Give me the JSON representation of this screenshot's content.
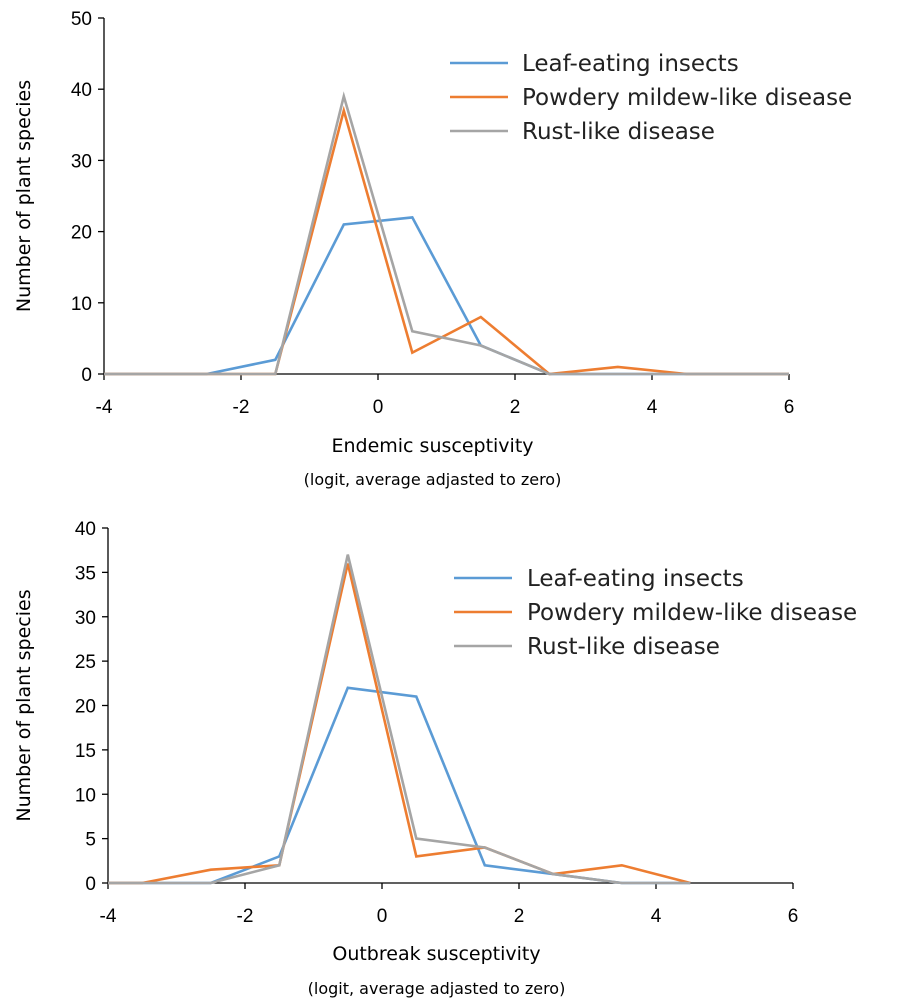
{
  "colors": {
    "leaf": "#5b9bd5",
    "powdery": "#ed7d31",
    "rust": "#a5a5a5"
  },
  "chart_data": [
    {
      "type": "line",
      "xlabel": "Endemic susceptivity",
      "xlabel_sub": "(logit, average adjasted to zero)",
      "ylabel": "Number of plant species",
      "xlim": [
        -4,
        6
      ],
      "ylim": [
        0,
        50
      ],
      "xticks": [
        -4,
        -2,
        0,
        2,
        4,
        6
      ],
      "yticks": [
        0,
        10,
        20,
        30,
        40,
        50
      ],
      "grid": false,
      "legend_position": "top-right",
      "x": [
        -4,
        -3.5,
        -2.5,
        -1.5,
        -0.5,
        0.5,
        1.5,
        2.5,
        3.5,
        4.5,
        6
      ],
      "series": [
        {
          "name": "Leaf-eating insects",
          "color_key": "leaf",
          "x": [
            -4,
            -3.5,
            -2.5,
            -1.5,
            -0.5,
            0.5,
            1.5,
            2.5,
            3.5,
            4.5,
            6
          ],
          "values": [
            0,
            0,
            0,
            2,
            21,
            22,
            4,
            0,
            0,
            0,
            0
          ]
        },
        {
          "name": "Powdery mildew-like disease",
          "color_key": "powdery",
          "x": [
            -4,
            -3.5,
            -2.5,
            -1.5,
            -0.5,
            0.5,
            1.5,
            2.5,
            3.5,
            4.5,
            6
          ],
          "values": [
            0,
            0,
            0,
            0,
            37,
            3,
            8,
            0,
            1,
            0,
            0
          ]
        },
        {
          "name": "Rust-like disease",
          "color_key": "rust",
          "x": [
            -4,
            -3.5,
            -2.5,
            -1.5,
            -0.5,
            0.5,
            1.5,
            2.5,
            3.5,
            4.5,
            6
          ],
          "values": [
            0,
            0,
            0,
            0,
            39,
            6,
            4,
            0,
            0,
            0,
            0
          ]
        }
      ]
    },
    {
      "type": "line",
      "xlabel": "Outbreak susceptivity",
      "xlabel_sub": "(logit, average adjasted to zero)",
      "ylabel": "Number of plant species",
      "xlim": [
        -4,
        6
      ],
      "ylim": [
        0,
        40
      ],
      "xticks": [
        -4,
        -2,
        0,
        2,
        4,
        6
      ],
      "yticks": [
        0,
        5,
        10,
        15,
        20,
        25,
        30,
        35,
        40
      ],
      "grid": false,
      "legend_position": "top-right",
      "series": [
        {
          "name": "Leaf-eating insects",
          "color_key": "leaf",
          "x": [
            -4,
            -3.5,
            -2.5,
            -1.5,
            -0.5,
            0.5,
            1.5,
            2.5,
            3.5,
            4.5
          ],
          "values": [
            0,
            0,
            0,
            3,
            22,
            21,
            2,
            1,
            0,
            0
          ]
        },
        {
          "name": "Powdery mildew-like disease",
          "color_key": "powdery",
          "x": [
            -4,
            -3.5,
            -2.5,
            -1.5,
            -0.5,
            0.5,
            1.5,
            2.5,
            3.5,
            4.5
          ],
          "values": [
            0,
            0,
            1.5,
            2,
            36,
            3,
            4,
            1,
            2,
            0
          ]
        },
        {
          "name": "Rust-like disease",
          "color_key": "rust",
          "x": [
            -4,
            -3.5,
            -2.5,
            -1.5,
            -0.5,
            0.5,
            1.5,
            2.5,
            3.5,
            4.5
          ],
          "values": [
            0,
            0,
            0,
            2,
            37,
            5,
            4,
            1,
            0,
            0
          ]
        }
      ]
    }
  ]
}
